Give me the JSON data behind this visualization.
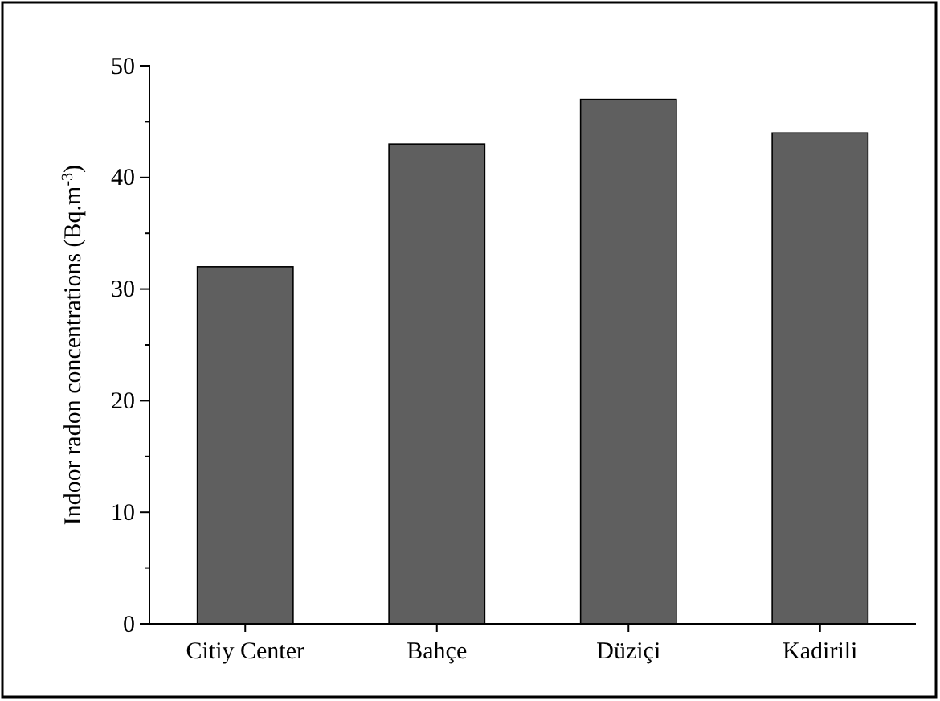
{
  "chart_data": {
    "type": "bar",
    "ylabel": "Indoor radon concentrations (Bq.m$^{-3}$)",
    "categories": [
      "Citiy Center",
      "Bahçe",
      "Düziçi",
      "Kadirili"
    ],
    "values": [
      32,
      43,
      47,
      44
    ],
    "color": "#5f5f5f",
    "ylim": [
      0,
      50
    ],
    "yticks": [
      0,
      10,
      20,
      30,
      40,
      50
    ],
    "grid": false
  }
}
